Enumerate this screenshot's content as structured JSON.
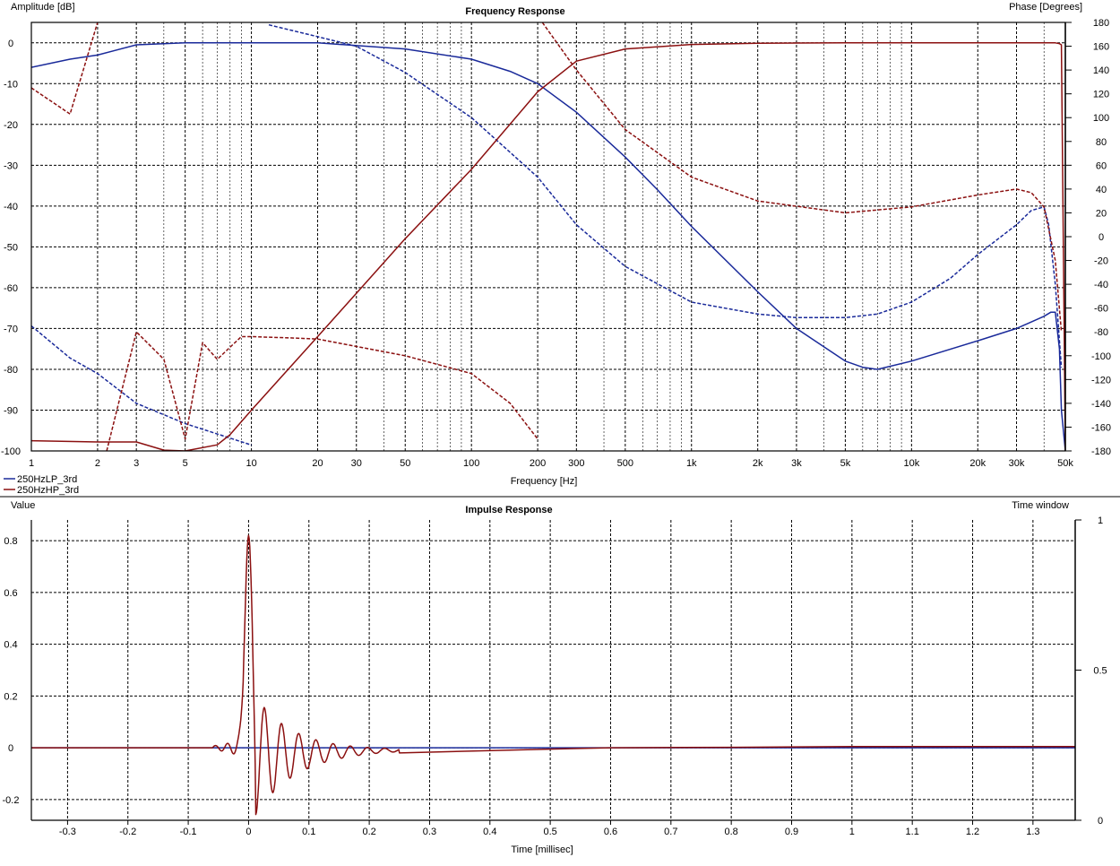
{
  "chart_data": [
    {
      "type": "line",
      "title": "Frequency Response",
      "xlabel": "Frequency [Hz]",
      "ylabel": "Amplitude [dB]",
      "y2label": "Phase [Degrees]",
      "xscale": "log",
      "xlim": [
        1,
        50000
      ],
      "ylim": [
        -100,
        5
      ],
      "y2lim": [
        -180,
        180
      ],
      "grid": true,
      "legend_position": "bottom-left",
      "x_tick_values": [
        1,
        2,
        3,
        5,
        10,
        20,
        30,
        50,
        100,
        200,
        300,
        500,
        1000,
        2000,
        3000,
        5000,
        10000,
        20000,
        30000,
        50000
      ],
      "x_tick_labels": [
        "1",
        "2",
        "3",
        "5",
        "10",
        "20",
        "30",
        "50",
        "100",
        "200",
        "300",
        "500",
        "1k",
        "2k",
        "3k",
        "5k",
        "10k",
        "20k",
        "30k",
        "50k"
      ],
      "y_ticks": [
        0,
        -10,
        -20,
        -30,
        -40,
        -50,
        -60,
        -70,
        -80,
        -90,
        -100
      ],
      "y2_ticks": [
        180,
        160,
        140,
        120,
        100,
        80,
        60,
        40,
        20,
        0,
        -20,
        -40,
        -60,
        -80,
        -100,
        -120,
        -140,
        -160,
        -180
      ],
      "series": [
        {
          "name": "250HzLP_3rd",
          "quantity": "amplitude",
          "style": "solid",
          "color": "#1a2a9a",
          "x": [
            1,
            1.5,
            2,
            3,
            5,
            10,
            20,
            50,
            100,
            150,
            200,
            300,
            500,
            700,
            1000,
            2000,
            3000,
            5000,
            6000,
            7000,
            10000,
            20000,
            30000,
            40000,
            43000,
            45000,
            47000,
            48000,
            50000
          ],
          "y": [
            -6,
            -4,
            -3,
            -0.5,
            0,
            0,
            0,
            -1.5,
            -4,
            -7,
            -10,
            -17,
            -28,
            -36,
            -45,
            -61,
            -70,
            -78,
            -79.5,
            -80,
            -78,
            -73,
            -70,
            -67,
            -66,
            -66,
            -75,
            -90,
            -100
          ]
        },
        {
          "name": "250HzLP_3rd",
          "quantity": "phase",
          "style": "dashed",
          "color": "#1a2a9a",
          "x": [
            1,
            1.5,
            2,
            3,
            5,
            10,
            12,
            20,
            30,
            50,
            100,
            200,
            300,
            500,
            1000,
            2000,
            3000,
            5000,
            7000,
            10000,
            15000,
            20000,
            30000,
            35000,
            40000,
            42000,
            45000,
            48000
          ],
          "y": [
            -75,
            -102,
            -115,
            -140,
            -157,
            -175,
            178,
            168,
            160,
            138,
            100,
            50,
            10,
            -25,
            -55,
            -65,
            -68,
            -68,
            -65,
            -55,
            -35,
            -15,
            10,
            22,
            25,
            10,
            -40,
            -110
          ]
        },
        {
          "name": "250HzHP_3rd",
          "quantity": "amplitude",
          "style": "solid",
          "color": "#8b1010",
          "x": [
            1,
            2,
            3,
            4,
            5,
            7,
            8,
            10,
            20,
            50,
            100,
            200,
            300,
            500,
            1000,
            2000,
            5000,
            10000,
            20000,
            40000,
            45000,
            47000,
            48000,
            50000
          ],
          "y": [
            -97.5,
            -97.8,
            -97.8,
            -99.8,
            -100,
            -98.5,
            -96,
            -90,
            -72,
            -48,
            -31,
            -12,
            -4.5,
            -1.5,
            -0.4,
            -0.1,
            0,
            0,
            0,
            0,
            0,
            -0.2,
            -0.5,
            -100
          ]
        },
        {
          "name": "250HzHP_3rd",
          "quantity": "phase",
          "style": "dashed",
          "color": "#8b1010",
          "x": [
            1,
            1.5,
            2,
            2.2,
            3,
            4,
            5,
            6,
            7,
            9,
            10,
            15,
            20,
            50,
            100,
            150,
            200,
            210,
            300,
            500,
            1000,
            2000,
            5000,
            10000,
            20000,
            30000,
            35000,
            40000,
            45000,
            48000
          ],
          "y": [
            125,
            103,
            180,
            -180,
            -80,
            -103,
            -170,
            -89,
            -103,
            -84,
            -84,
            -85,
            -86,
            -100,
            -115,
            -140,
            -170,
            180,
            140,
            90,
            50,
            30,
            20,
            25,
            35,
            40,
            37,
            25,
            -20,
            -80
          ]
        }
      ]
    },
    {
      "type": "line",
      "title": "Impulse Response",
      "xlabel": "Time [millisec]",
      "ylabel": "Value",
      "y2label": "Time window",
      "xlim": [
        -0.36,
        1.37
      ],
      "ylim": [
        -0.28,
        0.88
      ],
      "y2lim": [
        0,
        1
      ],
      "grid": true,
      "x_ticks": [
        -0.3,
        -0.2,
        -0.1,
        0,
        0.1,
        0.2,
        0.3,
        0.4,
        0.5,
        0.6,
        0.7,
        0.8,
        0.9,
        1,
        1.1,
        1.2,
        1.3
      ],
      "y_ticks": [
        0.8,
        0.6,
        0.4,
        0.2,
        0,
        -0.2
      ],
      "y2_ticks": [
        1,
        0.5,
        0
      ],
      "series": [
        {
          "name": "250HzLP_3rd",
          "color": "#1a2a9a",
          "x": [
            -0.36,
            1.37
          ],
          "y": [
            0,
            0
          ]
        },
        {
          "name": "250HzHP_3rd",
          "color": "#8b1010",
          "impulse": {
            "peak_time": 0,
            "peak_value": 0.82,
            "trough_value": -0.28,
            "ring_period": 0.0285,
            "ring_start_amp": 0.12,
            "decay": 0.065
          },
          "tail": {
            "x": [
              0.25,
              0.5,
              0.6,
              0.8,
              1.0,
              1.37
            ],
            "y": [
              -0.02,
              -0.005,
              0,
              0.002,
              0.005,
              0.005
            ]
          }
        }
      ]
    }
  ]
}
